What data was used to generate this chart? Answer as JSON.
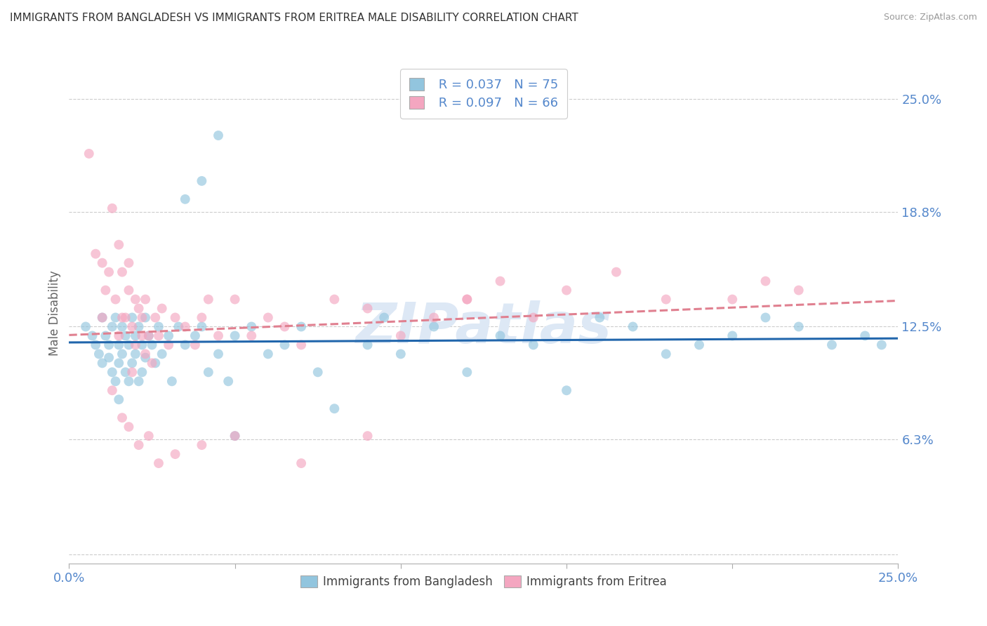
{
  "title": "IMMIGRANTS FROM BANGLADESH VS IMMIGRANTS FROM ERITREA MALE DISABILITY CORRELATION CHART",
  "source": "Source: ZipAtlas.com",
  "ylabel": "Male Disability",
  "yticks": [
    0.0,
    0.063,
    0.125,
    0.188,
    0.25
  ],
  "ytick_labels": [
    "",
    "6.3%",
    "12.5%",
    "18.8%",
    "25.0%"
  ],
  "xtick_vals": [
    0.0,
    0.05,
    0.1,
    0.15,
    0.2,
    0.25
  ],
  "xlim": [
    0.0,
    0.25
  ],
  "ylim": [
    -0.005,
    0.27
  ],
  "legend_label1": "Immigrants from Bangladesh",
  "legend_label2": "Immigrants from Eritrea",
  "R1": 0.037,
  "N1": 75,
  "R2": 0.097,
  "N2": 66,
  "color1": "#92c5de",
  "color2": "#f4a6c0",
  "line_color1": "#2166ac",
  "line_color2": "#e08090",
  "bg_color": "#ffffff",
  "grid_color": "#cccccc",
  "title_color": "#333333",
  "source_color": "#999999",
  "tick_color": "#5588cc",
  "watermark_color": "#dde8f5",
  "scatter_size": 100,
  "scatter_alpha": 0.65
}
